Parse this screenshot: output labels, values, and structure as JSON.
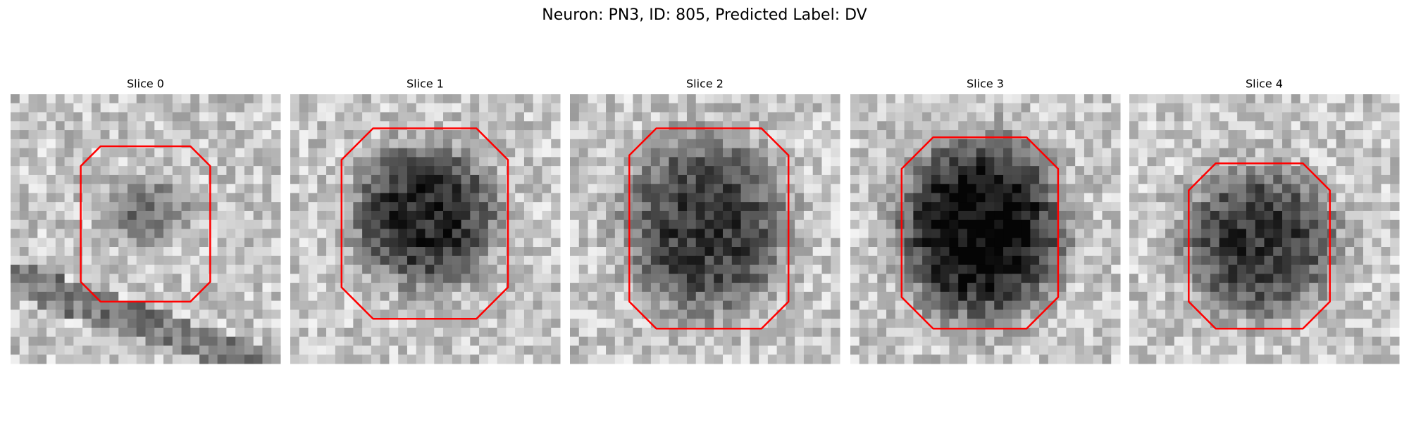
{
  "title": "Neuron: PN3, ID: 805, Predicted Label: DV",
  "panels": [
    {
      "title": "Slice 0"
    },
    {
      "title": "Slice 1"
    },
    {
      "title": "Slice 2"
    },
    {
      "title": "Slice 3"
    },
    {
      "title": "Slice 4"
    }
  ]
}
